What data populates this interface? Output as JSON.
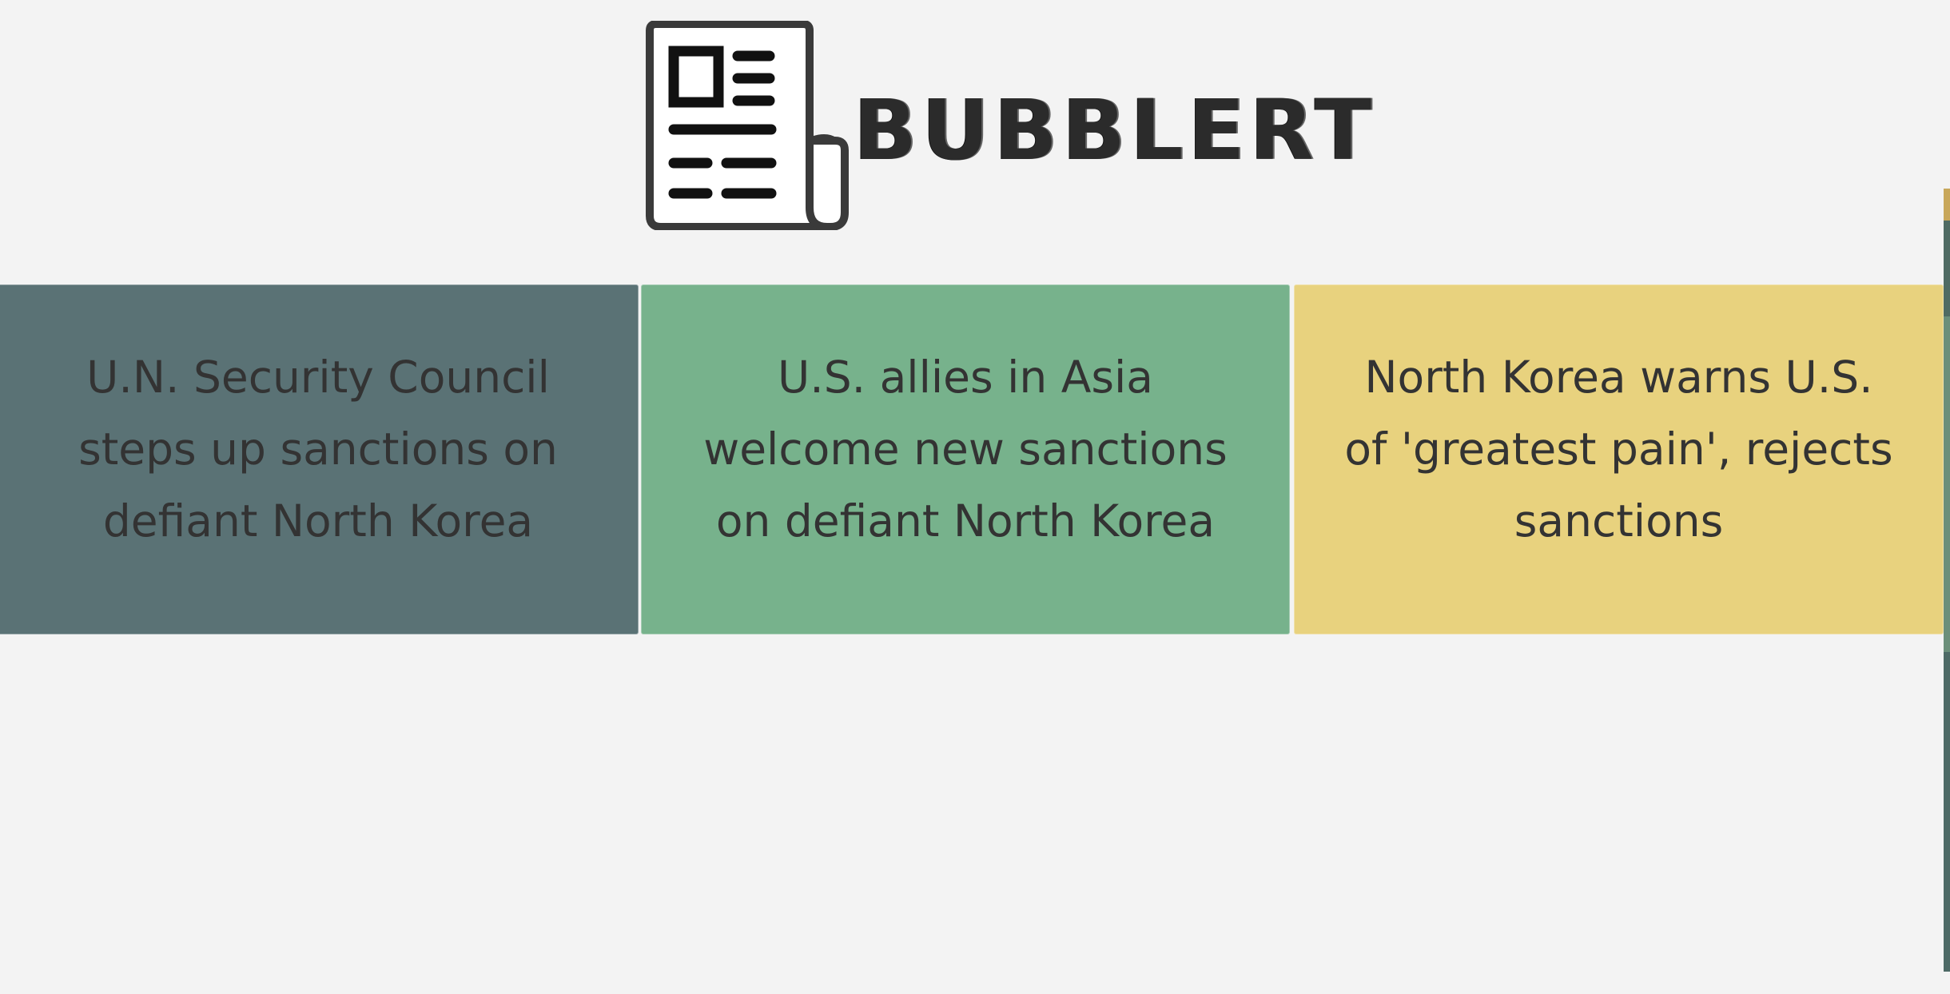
{
  "brand": {
    "name": "BUBBLERT",
    "logo_icon": "newspaper-icon"
  },
  "colors": {
    "background": "#f3f3f3",
    "card_1": "#5a7275",
    "card_2": "#77b28c",
    "card_3": "#e8d27e",
    "text": "#333333"
  },
  "cards": [
    {
      "headline": "U.N. Security Council steps up sanctions on defiant North Korea"
    },
    {
      "headline": "U.S. allies in Asia welcome new sanctions on defiant North Korea"
    },
    {
      "headline": "North Korea warns U.S. of 'greatest pain', rejects sanctions"
    }
  ]
}
